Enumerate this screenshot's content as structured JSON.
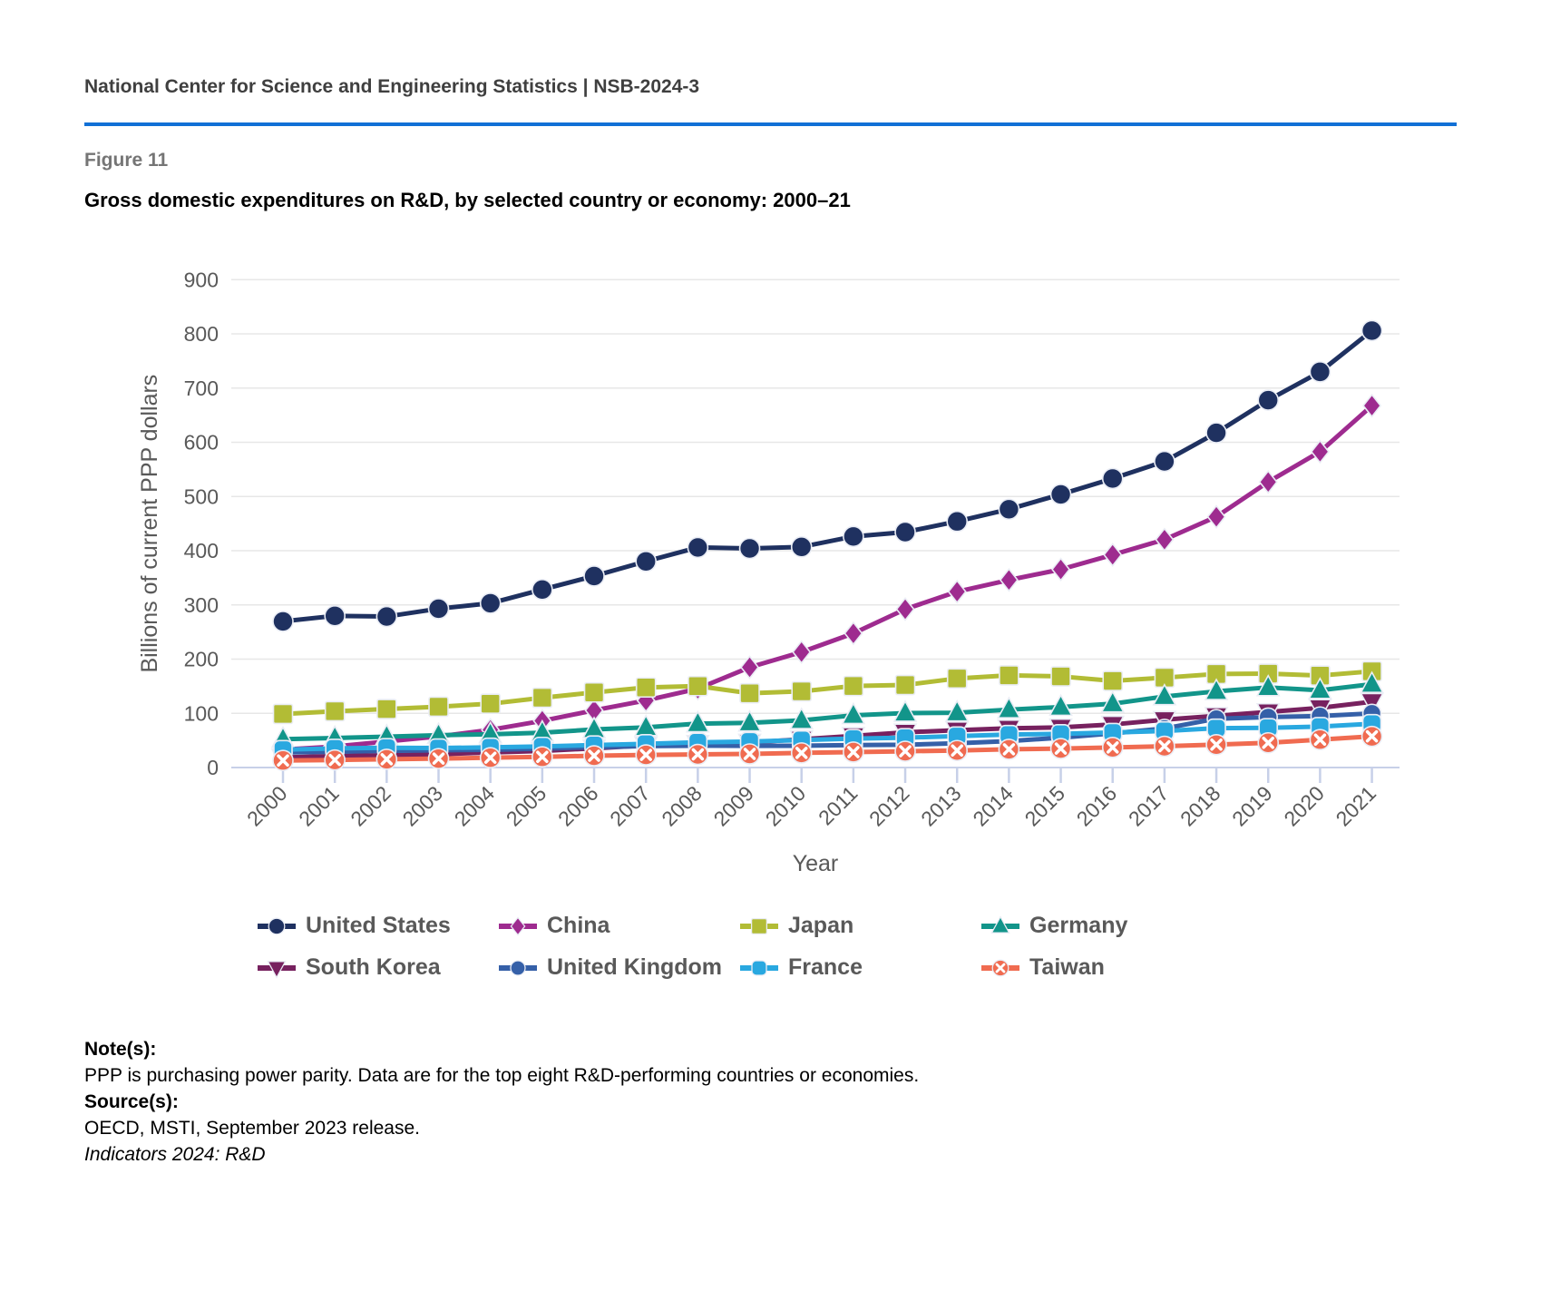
{
  "page": {
    "header": "National Center for Science and Engineering Statistics  |  NSB-2024-3",
    "figure_label": "Figure 11",
    "title": "Gross domestic expenditures on R&D, by selected country or economy: 2000–21"
  },
  "chart_data": {
    "type": "line",
    "title": "Gross domestic expenditures on R&D, by selected country or economy: 2000–21",
    "xlabel": "Year",
    "ylabel": "Billions of current PPP dollars",
    "ylim": [
      0,
      900
    ],
    "ytick_step": 100,
    "grid": true,
    "legend_position": "bottom",
    "x": [
      2000,
      2001,
      2002,
      2003,
      2004,
      2005,
      2006,
      2007,
      2008,
      2009,
      2010,
      2011,
      2012,
      2013,
      2014,
      2015,
      2016,
      2017,
      2018,
      2019,
      2020,
      2021
    ],
    "series": [
      {
        "name": "United States",
        "marker": "circle",
        "color": "#1F3160",
        "values": [
          269.6,
          279.8,
          278.6,
          293.0,
          303.1,
          328.3,
          353.3,
          380.3,
          406.0,
          404.2,
          407.0,
          426.2,
          434.3,
          454.0,
          476.5,
          503.9,
          533.1,
          564.7,
          617.5,
          677.7,
          729.9,
          805.9
        ]
      },
      {
        "name": "China",
        "marker": "diamond",
        "color": "#9E2B8F",
        "values": [
          33.1,
          38.8,
          48.0,
          57.4,
          69.5,
          86.1,
          105.5,
          123.7,
          145.5,
          184.9,
          213.0,
          247.5,
          292.1,
          324.4,
          346.0,
          365.5,
          392.4,
          420.5,
          462.6,
          526.8,
          582.7,
          667.6
        ]
      },
      {
        "name": "Japan",
        "marker": "square",
        "color": "#B2BC35",
        "values": [
          98.8,
          103.8,
          107.9,
          112.2,
          117.7,
          128.7,
          138.5,
          147.7,
          150.2,
          137.0,
          140.5,
          150.4,
          152.2,
          164.3,
          170.0,
          168.1,
          159.8,
          165.8,
          172.6,
          173.2,
          169.6,
          177.5
        ]
      },
      {
        "name": "Germany",
        "marker": "triangle-up",
        "color": "#12958A",
        "values": [
          52.4,
          54.4,
          57.0,
          59.7,
          61.4,
          64.3,
          70.2,
          74.0,
          81.0,
          82.5,
          87.0,
          96.3,
          100.5,
          101.0,
          106.8,
          111.5,
          117.7,
          131.0,
          140.5,
          147.7,
          142.5,
          153.7
        ]
      },
      {
        "name": "South Korea",
        "marker": "triangle-down",
        "color": "#77215F",
        "values": [
          18.6,
          21.2,
          22.5,
          24.3,
          27.9,
          30.6,
          35.4,
          40.7,
          43.9,
          46.1,
          52.2,
          58.4,
          64.9,
          68.9,
          72.3,
          74.1,
          79.4,
          88.2,
          95.4,
          102.5,
          110.1,
          121.4
        ]
      },
      {
        "name": "United Kingdom",
        "marker": "circle-small",
        "color": "#3560A8",
        "values": [
          27.9,
          29.1,
          30.8,
          31.7,
          32.7,
          34.8,
          37.5,
          39.5,
          40.3,
          39.9,
          40.2,
          41.5,
          42.0,
          44.8,
          48.8,
          55.0,
          63.0,
          72.0,
          90.0,
          93.0,
          95.0,
          99.9
        ]
      },
      {
        "name": "France",
        "marker": "square-rounded",
        "color": "#29A8E0",
        "values": [
          33.0,
          35.2,
          36.5,
          35.9,
          37.3,
          38.9,
          41.5,
          43.8,
          46.5,
          48.0,
          50.7,
          53.3,
          55.0,
          58.0,
          60.8,
          62.2,
          64.6,
          67.4,
          72.5,
          73.3,
          75.5,
          80.8
        ]
      },
      {
        "name": "Taiwan",
        "marker": "circle-x",
        "color": "#F06B50",
        "values": [
          13.0,
          13.9,
          15.2,
          16.5,
          18.1,
          19.7,
          21.7,
          23.3,
          24.2,
          25.1,
          27.0,
          28.5,
          30.0,
          31.4,
          33.6,
          35.0,
          37.1,
          39.3,
          42.2,
          45.6,
          51.5,
          57.5
        ]
      }
    ]
  },
  "notes": {
    "note_heading": "Note(s):",
    "note_body": "PPP is purchasing power parity. Data are for the top eight R&D-performing countries or economies.",
    "source_heading": "Source(s):",
    "source_body": "OECD, MSTI, September 2023 release.",
    "footer": "Indicators 2024: R&D"
  }
}
